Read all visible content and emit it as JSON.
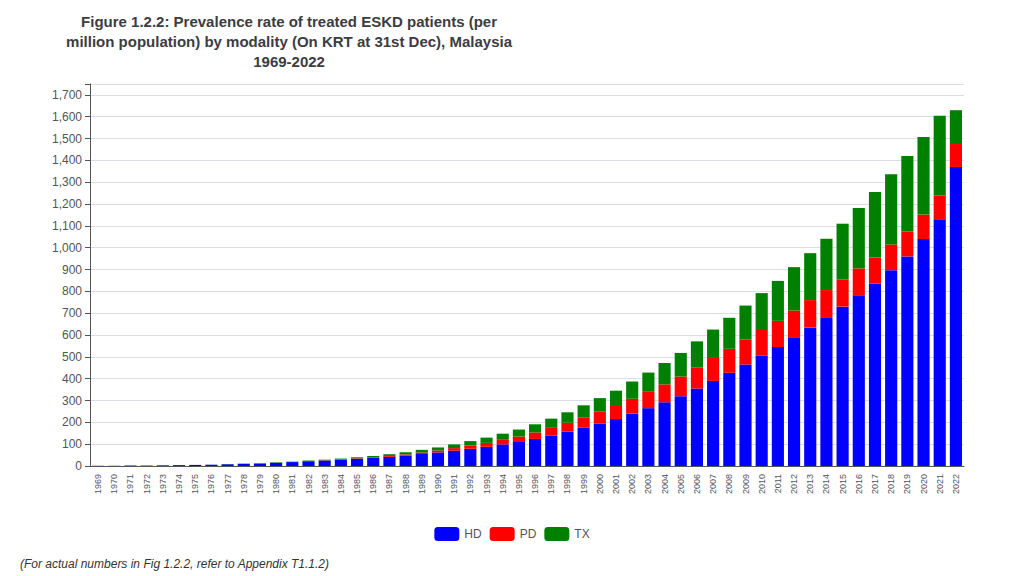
{
  "chart_data": {
    "type": "bar",
    "title": "Figure 1.2.2: Prevalence rate of treated ESKD patients (per\nmillion population) by modality (On KRT at 31st Dec), Malaysia\n1969-2022",
    "footnote": "(For actual numbers in Fig 1.2.2, refer to Appendix T1.1.2)",
    "categories": [
      1969,
      1970,
      1971,
      1972,
      1973,
      1974,
      1975,
      1976,
      1977,
      1978,
      1979,
      1980,
      1981,
      1982,
      1983,
      1984,
      1985,
      1986,
      1987,
      1988,
      1989,
      1990,
      1991,
      1992,
      1993,
      1994,
      1995,
      1996,
      1997,
      1998,
      1999,
      2000,
      2001,
      2002,
      2003,
      2004,
      2005,
      2006,
      2007,
      2008,
      2009,
      2010,
      2011,
      2012,
      2013,
      2014,
      2015,
      2016,
      2017,
      2018,
      2019,
      2020,
      2021,
      2022
    ],
    "series": [
      {
        "name": "HD",
        "color": "#0000FF",
        "values": [
          1,
          1,
          2,
          2,
          3,
          4,
          5,
          6,
          8,
          10,
          12,
          15,
          18,
          22,
          25,
          29,
          33,
          37,
          42,
          48,
          55,
          62,
          70,
          79,
          88,
          99,
          110,
          124,
          140,
          157,
          175,
          195,
          215,
          240,
          265,
          292,
          320,
          355,
          390,
          427,
          465,
          505,
          545,
          590,
          635,
          682,
          730,
          782,
          835,
          897,
          960,
          1040,
          1130,
          1370
        ]
      },
      {
        "name": "PD",
        "color": "#FF0000",
        "values": [
          0,
          0,
          0,
          0,
          0,
          0,
          0,
          0,
          0,
          0,
          0,
          0,
          0,
          0,
          1,
          1,
          2,
          3,
          4,
          5,
          7,
          9,
          12,
          15,
          18,
          21,
          25,
          30,
          35,
          41,
          48,
          54,
          60,
          68,
          75,
          82,
          90,
          97,
          105,
          110,
          115,
          118,
          120,
          122,
          125,
          124,
          125,
          123,
          120,
          118,
          115,
          112,
          110,
          105
        ]
      },
      {
        "name": "TX",
        "color": "#008000",
        "values": [
          0,
          0,
          0,
          0,
          0,
          0,
          0,
          0,
          1,
          1,
          1,
          2,
          2,
          3,
          3,
          4,
          5,
          6,
          8,
          10,
          12,
          14,
          17,
          20,
          24,
          28,
          32,
          37,
          42,
          48,
          55,
          62,
          70,
          79,
          88,
          98,
          108,
          119,
          130,
          142,
          155,
          169,
          183,
          199,
          215,
          235,
          255,
          277,
          300,
          322,
          345,
          355,
          365,
          155
        ]
      }
    ],
    "stacked": true,
    "ylim": [
      0,
      1750
    ],
    "yticks": [
      0,
      100,
      200,
      300,
      400,
      500,
      600,
      700,
      800,
      900,
      {
        "value": 1000,
        "label": "1,000"
      },
      {
        "value": 1100,
        "label": "1,100"
      },
      {
        "value": 1200,
        "label": "1,200"
      },
      {
        "value": 1300,
        "label": "1,300"
      },
      {
        "value": 1400,
        "label": "1,400"
      },
      {
        "value": 1500,
        "label": "1,500"
      },
      {
        "value": 1600,
        "label": "1,600"
      },
      {
        "value": 1700,
        "label": "1,700"
      }
    ],
    "grid": true,
    "legend": "bottom"
  }
}
